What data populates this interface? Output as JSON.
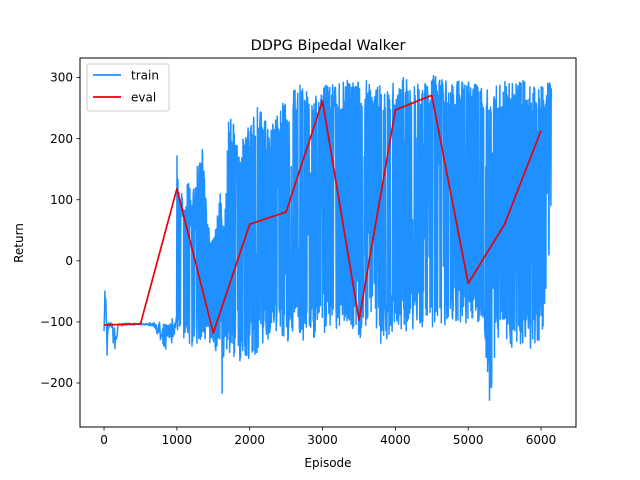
{
  "chart_data": {
    "type": "line",
    "title": "DDPG Bipedal Walker",
    "xlabel": "Episode",
    "ylabel": "Return",
    "xlim": [
      -330,
      6480
    ],
    "ylim": [
      -272,
      332
    ],
    "xticks": [
      0,
      1000,
      2000,
      3000,
      4000,
      5000,
      6000
    ],
    "yticks": [
      -200,
      -100,
      0,
      100,
      200,
      300
    ],
    "grid": false,
    "legend": {
      "placement": "top-left"
    },
    "series": [
      {
        "name": "train",
        "color": "#1e90ff",
        "noisy": true,
        "x": [
          0,
          20,
          40,
          60,
          80,
          100,
          150,
          200,
          300,
          400,
          500,
          600,
          700,
          750,
          800,
          850,
          900,
          950,
          980,
          1000,
          1030,
          1060,
          1100,
          1150,
          1200,
          1250,
          1300,
          1350,
          1400,
          1450,
          1500,
          1550,
          1600,
          1620,
          1650,
          1700,
          1750,
          1800,
          1850,
          1900,
          1950,
          2000,
          2100,
          2200,
          2300,
          2400,
          2500,
          2600,
          2700,
          2800,
          2900,
          3000,
          3100,
          3200,
          3300,
          3400,
          3500,
          3600,
          3700,
          3800,
          3900,
          4000,
          4100,
          4200,
          4300,
          4400,
          4500,
          4600,
          4700,
          4800,
          4900,
          5000,
          5100,
          5200,
          5300,
          5400,
          5500,
          5600,
          5700,
          5800,
          5900,
          6000,
          6050,
          6100,
          6150
        ],
        "low": [
          -115,
          -100,
          -190,
          -110,
          -115,
          -105,
          -165,
          -108,
          -105,
          -105,
          -105,
          -105,
          -110,
          -125,
          -165,
          -155,
          -140,
          -130,
          -110,
          -115,
          -140,
          -135,
          -130,
          -140,
          -140,
          -145,
          -150,
          -135,
          -130,
          -140,
          -145,
          -150,
          -125,
          -218,
          -145,
          -155,
          -160,
          -165,
          -170,
          -150,
          -165,
          -160,
          -150,
          -135,
          -130,
          -115,
          -130,
          -135,
          -140,
          -130,
          -125,
          -130,
          -120,
          -115,
          -100,
          -110,
          -130,
          -110,
          -105,
          -140,
          -130,
          -105,
          -120,
          -110,
          -115,
          -105,
          -115,
          -110,
          -105,
          -100,
          -110,
          -100,
          -95,
          -110,
          -242,
          -130,
          -110,
          -170,
          -140,
          -130,
          -160,
          -120,
          -105,
          -15,
          -15
        ],
        "high": [
          -20,
          -20,
          -100,
          -100,
          -100,
          -100,
          -100,
          -102,
          -102,
          -102,
          -102,
          -102,
          -100,
          -95,
          -95,
          -95,
          -95,
          -95,
          -90,
          175,
          130,
          120,
          75,
          135,
          105,
          140,
          175,
          190,
          100,
          45,
          50,
          70,
          115,
          80,
          40,
          235,
          235,
          220,
          190,
          200,
          215,
          220,
          260,
          230,
          225,
          245,
          270,
          280,
          290,
          280,
          285,
          290,
          285,
          295,
          295,
          300,
          300,
          295,
          290,
          295,
          300,
          295,
          300,
          300,
          300,
          295,
          305,
          300,
          295,
          295,
          295,
          295,
          290,
          290,
          285,
          295,
          295,
          290,
          295,
          295,
          295,
          290,
          290,
          295,
          295
        ]
      },
      {
        "name": "eval",
        "color": "#e8000b",
        "x": [
          0,
          500,
          1000,
          1500,
          2000,
          2500,
          3000,
          3500,
          4000,
          4500,
          5000,
          5500,
          6000
        ],
        "y": [
          -105,
          -103,
          118,
          -118,
          60,
          80,
          262,
          -97,
          247,
          271,
          -37,
          60,
          213
        ]
      }
    ]
  }
}
